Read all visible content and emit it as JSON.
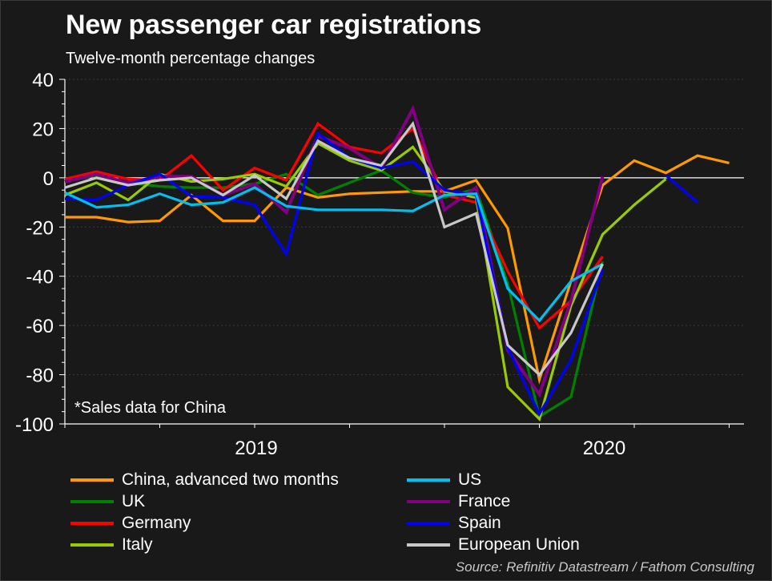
{
  "header": {
    "title": "New passenger car registrations",
    "subtitle": "Twelve-month percentage changes"
  },
  "note": "*Sales data for China",
  "source": "Source: Refinitiv Datastream / Fathom Consulting",
  "chart_data": {
    "type": "line",
    "title": "New passenger car registrations",
    "subtitle": "Twelve-month percentage changes",
    "xlabel": "",
    "ylabel": "",
    "ylim": [
      -100,
      40
    ],
    "yticks": [
      40,
      20,
      0,
      -20,
      -40,
      -60,
      -80,
      -100
    ],
    "x_year_labels": [
      {
        "label": "2019",
        "month_index": 6
      },
      {
        "label": "2020",
        "month_index": 17
      }
    ],
    "n_months": 22,
    "grid": "horizontal dotted",
    "legend_placement": "bottom",
    "series": [
      {
        "name": "China, advanced two months",
        "color": "#ff9900",
        "values": [
          -16,
          -16,
          -18,
          -17.5,
          -7,
          -17.5,
          -17.5,
          -4,
          -8,
          -6.5,
          -6,
          -5.5,
          -5.5,
          -1,
          -20.5,
          -82,
          -42,
          -3,
          7,
          2,
          9,
          6
        ]
      },
      {
        "name": "US",
        "color": "#00c0f0",
        "values": [
          -6,
          -12,
          -11,
          -6.5,
          -11,
          -10,
          -4,
          -11.5,
          -13,
          -13,
          -13,
          -13.5,
          -7,
          -6.5,
          -45,
          -58,
          -42,
          -35,
          null,
          null,
          null,
          null
        ]
      },
      {
        "name": "UK",
        "color": "#008000",
        "values": [
          -1.5,
          1,
          -2,
          -3.5,
          -4,
          -4,
          -2.5,
          1.5,
          -7,
          -2,
          3,
          -6,
          -8,
          -4.5,
          -43,
          -97,
          -89,
          -34,
          null,
          null,
          null,
          null
        ]
      },
      {
        "name": "France",
        "color": "#800080",
        "values": [
          -1.5,
          1.5,
          -2,
          0.5,
          0.5,
          -7,
          -2.5,
          -14,
          17,
          12,
          4,
          28,
          -13,
          -4,
          -70,
          -88,
          -50,
          0.5,
          null,
          null,
          null,
          null
        ]
      },
      {
        "name": "Germany",
        "color": "#ff0000",
        "values": [
          -0.5,
          2.5,
          -0.5,
          -1,
          9,
          -5,
          4,
          -1,
          22,
          12.5,
          10,
          20,
          -7,
          -10,
          -38,
          -61,
          -50,
          -32,
          null,
          null,
          null,
          null
        ]
      },
      {
        "name": "Spain",
        "color": "#0000ff",
        "values": [
          -8.5,
          -9,
          -3,
          1.5,
          -7.5,
          -8,
          -11,
          -31,
          18,
          8,
          4,
          6.5,
          -5,
          -7,
          -69,
          -96,
          -74,
          -37,
          null,
          1,
          -10,
          null
        ]
      },
      {
        "name": "Italy",
        "color": "#99cc00",
        "values": [
          -7,
          -2,
          -9,
          1.5,
          -1.5,
          -0.5,
          1.5,
          -3.5,
          14,
          7,
          3,
          12.5,
          -5.5,
          -8,
          -85,
          -98,
          -52,
          -23,
          -11,
          -0.5,
          null,
          null
        ]
      },
      {
        "name": "European Union",
        "color": "#c8c8c8",
        "values": [
          -4,
          0,
          -3,
          -1,
          0,
          -7,
          1,
          -8.5,
          15,
          8,
          5,
          22,
          -20,
          -14.5,
          -68,
          -80,
          -63,
          -35,
          null,
          null,
          null,
          null
        ]
      }
    ]
  }
}
